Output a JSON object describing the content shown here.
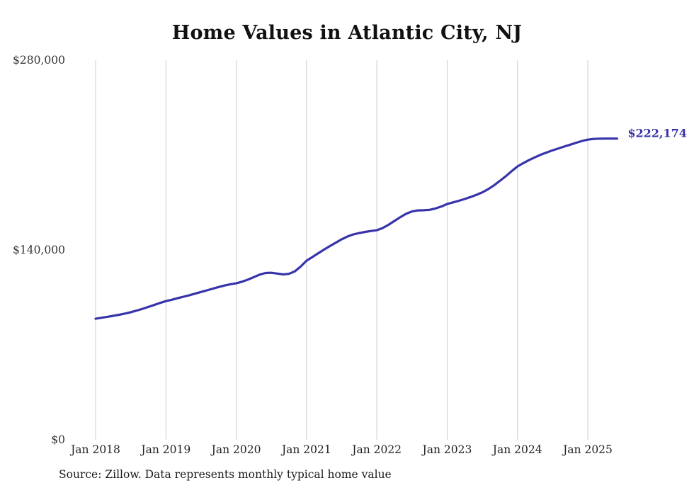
{
  "title": "Home Values in Atlantic City, NJ",
  "source_note": "Source: Zillow. Data represents monthly typical home value",
  "chart_data": {
    "type": "line",
    "title": "Home Values in Atlantic City, NJ",
    "series_name": "Monthly typical home value",
    "x_start": "Jan 2018",
    "x_end": "Jun 2025",
    "x_tick_labels": [
      "Jan 2018",
      "Jan 2019",
      "Jan 2020",
      "Jan 2021",
      "Jan 2022",
      "Jan 2023",
      "Jan 2024",
      "Jan 2025"
    ],
    "x_tick_month_indices": [
      0,
      12,
      24,
      36,
      48,
      60,
      72,
      84
    ],
    "ylim": [
      0,
      280000
    ],
    "y_ticks": [
      {
        "value": 0,
        "label": "$0"
      },
      {
        "value": 140000,
        "label": "$140,000"
      },
      {
        "value": 280000,
        "label": "$280,000"
      }
    ],
    "end_label": "$222,174",
    "end_value": 222174,
    "line_color": "#3733aa",
    "grid_color": "#cccccc",
    "grid": "vertical-only",
    "legend": "none",
    "values": [
      89300,
      90000,
      90700,
      91400,
      92200,
      93100,
      94100,
      95300,
      96600,
      98000,
      99400,
      100900,
      102300,
      103300,
      104400,
      105500,
      106600,
      107800,
      109000,
      110200,
      111500,
      112700,
      113800,
      114700,
      115400,
      116600,
      118100,
      120000,
      121800,
      123000,
      123200,
      122600,
      122000,
      122400,
      124200,
      127800,
      132100,
      134800,
      137600,
      140300,
      142900,
      145400,
      147900,
      150000,
      151500,
      152500,
      153300,
      154000,
      154600,
      156200,
      158600,
      161400,
      164200,
      166700,
      168400,
      169200,
      169300,
      169600,
      170600,
      172100,
      173900,
      175100,
      176300,
      177600,
      179100,
      180700,
      182500,
      184800,
      187700,
      191000,
      194400,
      198100,
      201600,
      204100,
      206400,
      208400,
      210300,
      212000,
      213500,
      214900,
      216300,
      217700,
      219100,
      220400,
      221400,
      221900,
      222100,
      222150,
      222160,
      222174
    ]
  }
}
